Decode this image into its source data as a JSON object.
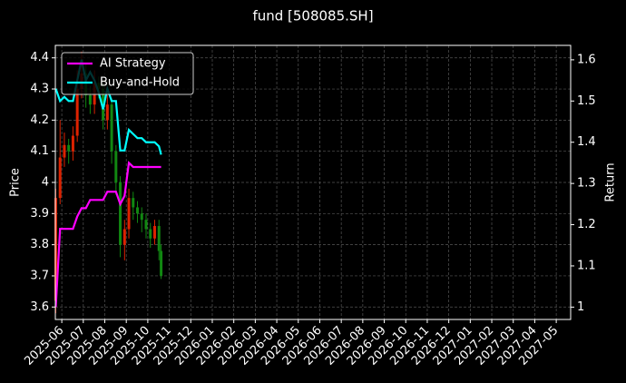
{
  "chart_data": {
    "type": "candlestick",
    "title": "fund [508085.SH]",
    "ylabel": "Price",
    "y2label": "Return",
    "up_color": "#dd2200",
    "down_color": "#118811",
    "grid": true,
    "legend": "upper left",
    "candles": {
      "x": [
        -0.28,
        -0.08,
        0.12,
        0.32,
        0.52,
        0.72,
        0.92,
        1.12,
        1.32,
        1.52,
        1.72,
        1.92,
        2.12,
        2.32,
        2.52,
        2.72,
        2.92,
        3.12,
        3.32,
        3.52,
        3.72,
        3.92,
        4.12,
        4.32,
        4.52,
        4.62
      ],
      "open": [
        3.62,
        3.95,
        4.08,
        4.12,
        4.1,
        4.15,
        4.3,
        4.35,
        4.28,
        4.25,
        4.32,
        4.3,
        4.2,
        4.25,
        4.1,
        4.0,
        3.8,
        3.85,
        3.95,
        3.92,
        3.9,
        3.88,
        3.85,
        3.82,
        3.86,
        3.78
      ],
      "high": [
        3.98,
        4.2,
        4.16,
        4.14,
        4.18,
        4.36,
        4.42,
        4.38,
        4.31,
        4.36,
        4.34,
        4.32,
        4.28,
        4.27,
        4.12,
        4.02,
        3.88,
        3.98,
        3.97,
        3.94,
        3.92,
        3.9,
        3.87,
        3.88,
        3.88,
        3.8
      ],
      "low": [
        3.58,
        3.93,
        4.05,
        4.06,
        4.07,
        4.13,
        4.27,
        4.24,
        4.22,
        4.22,
        4.27,
        4.17,
        4.17,
        4.06,
        3.96,
        3.76,
        3.75,
        3.82,
        3.88,
        3.87,
        3.84,
        3.82,
        3.79,
        3.8,
        3.75,
        3.69
      ],
      "close": [
        3.95,
        4.08,
        4.12,
        4.1,
        4.15,
        4.3,
        4.35,
        4.28,
        4.25,
        4.32,
        4.3,
        4.2,
        4.25,
        4.1,
        4.0,
        3.8,
        3.85,
        3.95,
        3.92,
        3.9,
        3.88,
        3.85,
        3.82,
        3.86,
        3.78,
        3.7
      ]
    },
    "series": [
      {
        "name": "AI Strategy",
        "color": "#ff00ff",
        "axis": "y2",
        "values": [
          1.0,
          1.19,
          1.19,
          1.19,
          1.19,
          1.22,
          1.24,
          1.24,
          1.26,
          1.26,
          1.26,
          1.26,
          1.28,
          1.28,
          1.28,
          1.25,
          1.27,
          1.35,
          1.34,
          1.34,
          1.34,
          1.34,
          1.34,
          1.34,
          1.34,
          1.34
        ]
      },
      {
        "name": "Buy-and-Hold",
        "color": "#00ffff",
        "axis": "y2",
        "values": [
          1.53,
          1.5,
          1.51,
          1.5,
          1.5,
          1.55,
          1.6,
          1.55,
          1.57,
          1.55,
          1.52,
          1.48,
          1.53,
          1.5,
          1.5,
          1.38,
          1.38,
          1.43,
          1.42,
          1.41,
          1.41,
          1.4,
          1.4,
          1.4,
          1.39,
          1.37
        ]
      }
    ],
    "xlim": [
      -0.3,
      23.67
    ],
    "xticks": [
      {
        "value": 0,
        "label": "2025-06"
      },
      {
        "value": 1,
        "label": "2025-07"
      },
      {
        "value": 2,
        "label": "2025-08"
      },
      {
        "value": 3,
        "label": "2025-09"
      },
      {
        "value": 4,
        "label": "2025-10"
      },
      {
        "value": 5,
        "label": "2025-11"
      },
      {
        "value": 6,
        "label": "2025-12"
      },
      {
        "value": 7,
        "label": "2026-01"
      },
      {
        "value": 8,
        "label": "2026-02"
      },
      {
        "value": 9,
        "label": "2026-03"
      },
      {
        "value": 10,
        "label": "2026-04"
      },
      {
        "value": 11,
        "label": "2026-05"
      },
      {
        "value": 12,
        "label": "2026-06"
      },
      {
        "value": 13,
        "label": "2026-07"
      },
      {
        "value": 14,
        "label": "2026-08"
      },
      {
        "value": 15,
        "label": "2026-09"
      },
      {
        "value": 16,
        "label": "2026-10"
      },
      {
        "value": 17,
        "label": "2026-11"
      },
      {
        "value": 18,
        "label": "2026-12"
      },
      {
        "value": 19,
        "label": "2027-01"
      },
      {
        "value": 20,
        "label": "2027-02"
      },
      {
        "value": 21,
        "label": "2027-03"
      },
      {
        "value": 22,
        "label": "2027-04"
      },
      {
        "value": 23,
        "label": "2027-05"
      }
    ],
    "ylim": [
      3.56,
      4.44
    ],
    "yticks": [
      3.6,
      3.7,
      3.8,
      3.9,
      4.0,
      4.1,
      4.2,
      4.3,
      4.4
    ],
    "y2lim": [
      0.97,
      1.635
    ],
    "y2ticks": [
      1.0,
      1.1,
      1.2,
      1.3,
      1.4,
      1.5,
      1.6
    ]
  }
}
